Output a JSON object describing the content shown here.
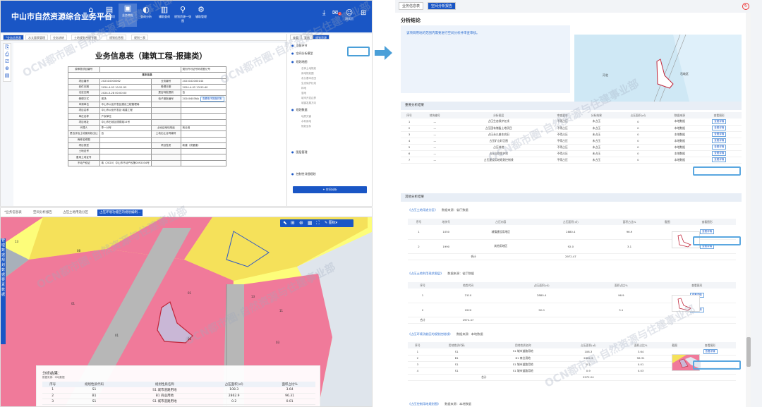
{
  "app": {
    "title": "中山市自然资源综合业务平台",
    "nav": [
      {
        "icon": "⌂",
        "label": "首页"
      },
      {
        "icon": "▤",
        "label": "待办事项"
      },
      {
        "icon": "▣",
        "label": "业务审批"
      },
      {
        "icon": "◐",
        "label": "查询分析"
      },
      {
        "icon": "▥",
        "label": "辅助查询"
      },
      {
        "icon": "⚲",
        "label": "规划资源一张图"
      },
      {
        "icon": "⚙",
        "label": "辅助管理"
      }
    ],
    "user": {
      "name": "测试员",
      "badge": "2"
    }
  },
  "top_left": {
    "tabs": [
      "*业务信息表",
      "水太量表管理",
      "业务流转",
      "土地规划合规专题",
      "规划信息图",
      "规划三表"
    ],
    "left_icons": [
      "⎘",
      "⎙",
      "⎚",
      "⊕",
      "▤"
    ],
    "form": {
      "title": "业务信息表（建筑工程-报建类）",
      "header_left": "原审批项目编号",
      "header_right": "规划许可证号码或登记号",
      "section": "基本信息",
      "rows": [
        [
          "项目编号",
          "202310000062",
          "业务编号",
          "2023102000144"
        ],
        [
          "收件日期",
          "2024-4-02 10:51:55",
          "受理日期",
          "2024-4-02 13:55:40"
        ],
        [
          "法定日期",
          "2024-5-28 00:00:00",
          "是否特批提前",
          "否"
        ],
        [
          "受理方式",
          "现场",
          "电子报批编号",
          "20240403NA",
          "查看电子报批材料"
        ],
        [
          "申请单位",
          "中山市火炬开发区建设工程管理局",
          "",
          ""
        ],
        [
          "项目名称",
          "中山市火炬开发区·城建工程",
          "",
          ""
        ],
        [
          "单位名称",
          "产权单位",
          "",
          ""
        ],
        [
          "项目地址",
          "中山市石岐区德泰路14号",
          "",
          ""
        ],
        [
          "代理人",
          "李一分号",
          "土地证地块用途",
          "商业用"
        ],
        [
          "是否涉及土地使用权出让",
          "否",
          "土地出让合同编号",
          ""
        ],
        [
          "两种名称图",
          "",
          "",
          ""
        ],
        [
          "项目类型",
          "",
          "项目性质",
          "新建（房屋建）"
        ],
        [
          "土地证号",
          "",
          "",
          ""
        ],
        [
          "备用土地证号",
          "",
          "",
          ""
        ],
        [
          "不动产权证",
          "粤（2020）中山市不动产权第0092034号",
          "",
          ""
        ]
      ]
    },
    "right_tabs": [
      "查看",
      "复核",
      "规划资源"
    ],
    "right_items": [
      "当前环节",
      "空间分析模型",
      "规划地图",
      "规划数据",
      "图层管理",
      "控制性详细规划"
    ],
    "right_subs": [
      "总体土地规划",
      "用地规划图",
      "永久基本农田",
      "生态保护红线",
      "林地",
      "湿地",
      "城市开发边界",
      "城镇发展方向",
      "地质灾害",
      "水利用地",
      "规划坐标"
    ],
    "analyze_button": "✦ 空间分析"
  },
  "bottom_left": {
    "tabs": [
      "*业务信息表",
      "空间分析报告",
      "占压土地用途分区",
      "占压环境功能区的规划编制..."
    ],
    "side_labels": [
      "管",
      "理",
      "数",
      "据",
      "规",
      "划",
      "数",
      "据",
      "要",
      "素",
      "数",
      "据"
    ],
    "toolbar": [
      "⬉",
      "⊞",
      "⊛",
      "▦",
      "⛶",
      "✎ 图标▾"
    ],
    "analysis": {
      "title": "分析结果：",
      "source": "数据来源：本地数据",
      "cols": [
        "序号",
        "规划性质代码",
        "规划性质名称",
        "占压面积(㎡)",
        "面积占比%"
      ],
      "rows": [
        [
          "1",
          "S1",
          "S1 城市道路用地",
          "108.3",
          "3.64"
        ],
        [
          "2",
          "B1",
          "B1 商业用地",
          "2862.9",
          "96.31"
        ],
        [
          "3",
          "S1",
          "S1 城市道路用地",
          "0.2",
          "0.01"
        ]
      ]
    },
    "map_labels": [
      "13",
      "08",
      "01",
      "01",
      "01",
      "13",
      "11",
      "03",
      "01"
    ]
  },
  "right_panel": {
    "tabs": [
      "业务信息表",
      "空间分析报告"
    ],
    "conclusion_title": "分析结论",
    "conclusion_text": "该项目用地的范围内需要进行空间分析并审查审核。",
    "map_labels": [
      "河北",
      "石岐区"
    ],
    "key_section": "重要分析结果",
    "key_cols": [
      "序号",
      "地块编号",
      "分析图层",
      "审查要求",
      "分析结果",
      "占压面积(㎡)",
      "数据来源",
      "查看图形"
    ],
    "key_rows": [
      [
        "1",
        "—",
        "占压生态保护红线",
        "不得占压",
        "未占压",
        "0",
        "本地数据"
      ],
      [
        "2",
        "—",
        "占压国有储备土地项目",
        "不得占压",
        "未占压",
        "0",
        "本地数据"
      ],
      [
        "3",
        "—",
        "占压永久基本农田",
        "不得占压",
        "未占压",
        "0",
        "本地数据"
      ],
      [
        "4",
        "—",
        "占压矿山矿区图",
        "不得占压",
        "未占压",
        "0",
        "本地数据"
      ],
      [
        "5",
        "—",
        "占压林地",
        "不得占压",
        "未占压",
        "0",
        "本地数据"
      ],
      [
        "6",
        "—",
        "占压自然保护地",
        "不得占压",
        "未占压",
        "0",
        "本地数据"
      ],
      [
        "7",
        "—",
        "占压建设用地规划控制线",
        "不得占压",
        "未占压",
        "0",
        "本地数据"
      ]
    ],
    "view_btn": "查看详情",
    "other_section": "其他分析结果",
    "sub1": {
      "title": "《占压土地用途分区》",
      "src": "数据来源：省厅数据",
      "cols": [
        "序号",
        "地块号",
        "占压内容",
        "占压面积(㎡)",
        "面积占比%",
        "截图",
        "查看图形"
      ],
      "rows": [
        [
          "1",
          "1050",
          "城镇建设用地区",
          "2880.4",
          "96.9"
        ],
        [
          "2",
          "1990",
          "其他用地区",
          "92.0",
          "3.1"
        ]
      ],
      "total_label": "合计",
      "total": "2972.47"
    },
    "sub2": {
      "title": "《占压土地利用现状图层》",
      "src": "数据来源：省厅数据",
      "cols": [
        "序号",
        "地类代码",
        "占压面积(㎡)",
        "面积占比%",
        "查看图形"
      ],
      "rows": [
        [
          "1",
          "2110",
          "2880.4",
          "96.9"
        ],
        [
          "2",
          "2220",
          "92.0",
          "3.1"
        ]
      ],
      "total_label": "合计",
      "total": "2972.47"
    },
    "sub3": {
      "title": "《占压环境功能区的规划控制线》",
      "src": "数据来源：本地数据",
      "cols": [
        "序号",
        "用地性质代码",
        "用地性质名称",
        "占压面积(㎡)",
        "面积占比%",
        "截图",
        "查看图形"
      ],
      "rows": [
        [
          "1",
          "S1",
          "S1 城市道路用地",
          "108.3",
          "3.64"
        ],
        [
          "2",
          "B1",
          "B1 商业用地",
          "2862.9",
          "96.31"
        ],
        [
          "3",
          "S1",
          "S1 城市道路用地",
          "0.2",
          "0.01"
        ],
        [
          "4",
          "S1",
          "S1 城市道路用地",
          "0.9",
          "0.03"
        ]
      ],
      "total_label": "合计",
      "total": "2972.24"
    },
    "sub4": {
      "title": "《占压控制用地规划图》",
      "src": "数据来源：本地数据"
    }
  },
  "watermark": "OCN都市圈·自然资源与住建事业部"
}
